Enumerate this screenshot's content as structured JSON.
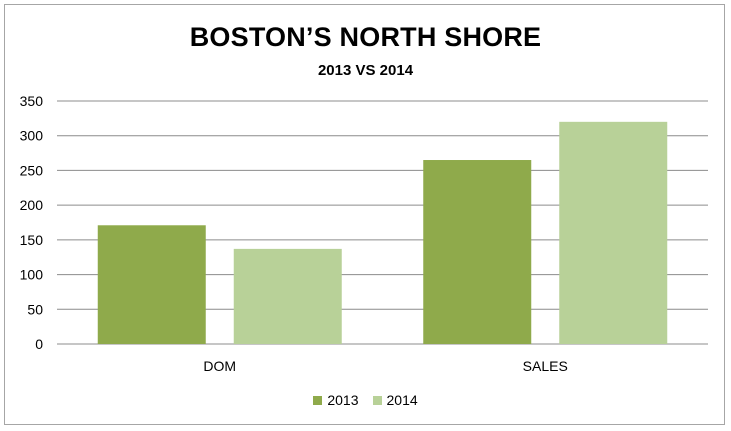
{
  "chart_data": {
    "type": "bar",
    "title": "BOSTON’S NORTH SHORE",
    "subtitle": "2013 VS 2014",
    "categories": [
      "DOM",
      "SALES"
    ],
    "series": [
      {
        "name": "2013",
        "values": [
          171,
          265
        ],
        "color": "#8faa4b"
      },
      {
        "name": "2014",
        "values": [
          137,
          320
        ],
        "color": "#b8d198"
      }
    ],
    "ylim": [
      0,
      350
    ],
    "yticks": [
      0,
      50,
      100,
      150,
      200,
      250,
      300,
      350
    ],
    "grid": true,
    "legend_position": "bottom"
  }
}
